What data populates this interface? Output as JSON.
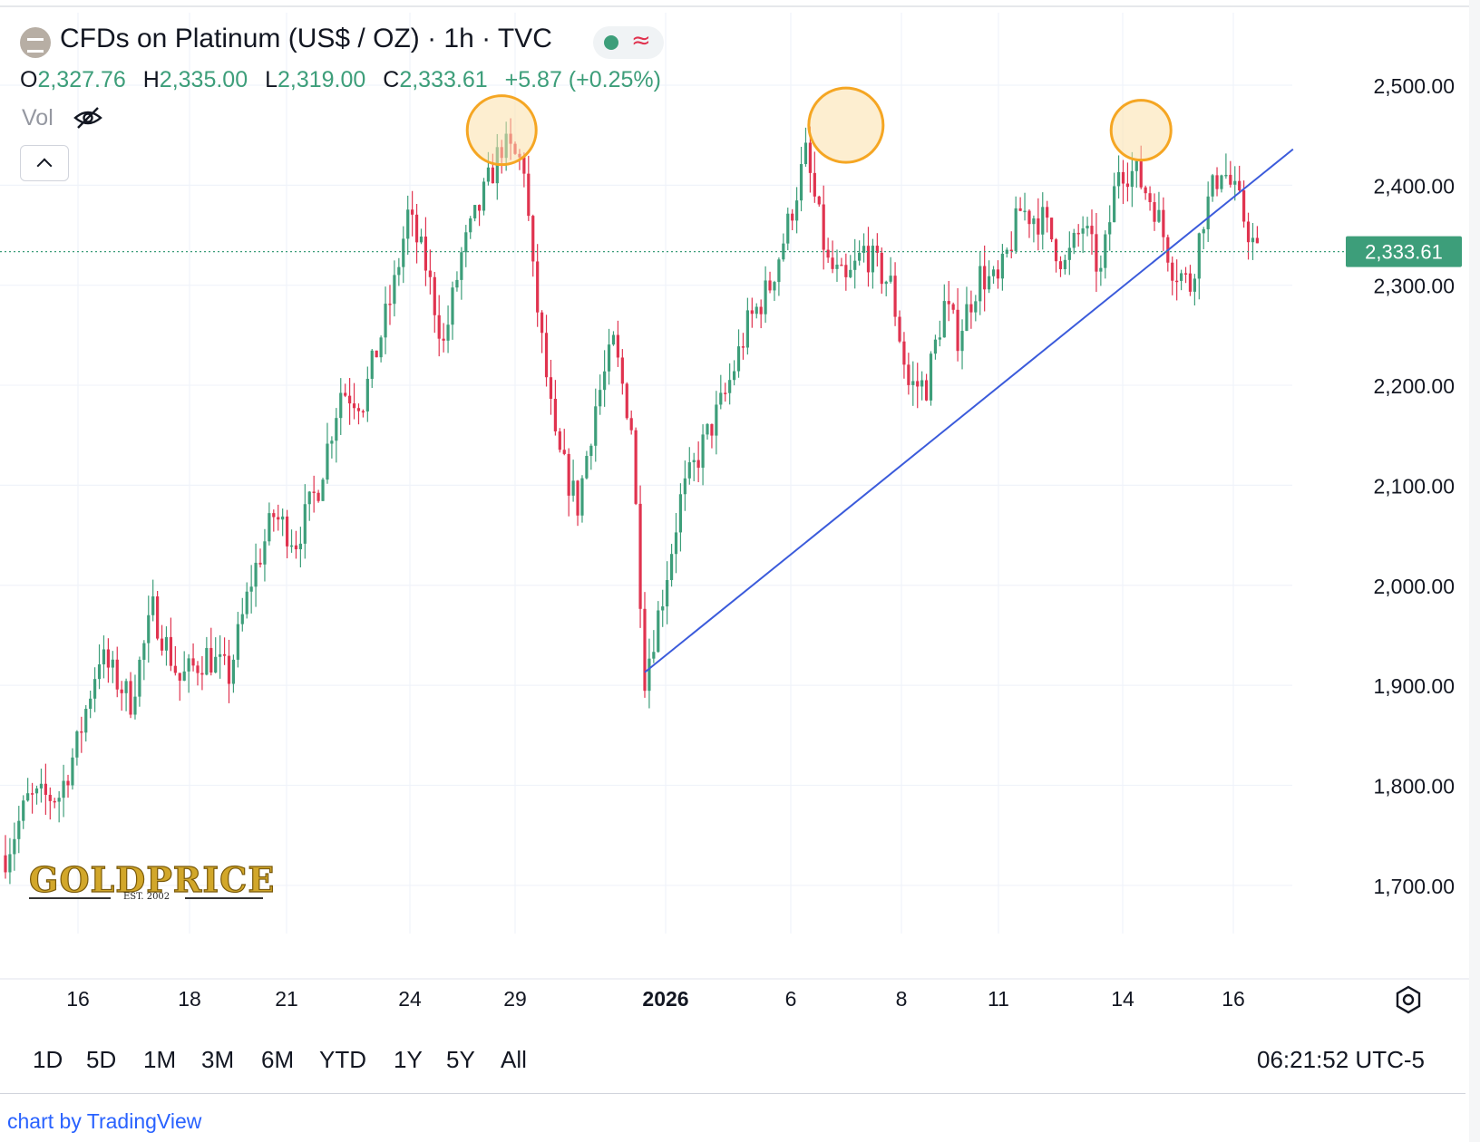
{
  "header": {
    "title": "CFDs on Platinum (US$ / OZ) · 1h · TVC",
    "ohlc": {
      "open_label": "O",
      "open": "2,327.76",
      "high_label": "H",
      "high": "2,335.00",
      "low_label": "L",
      "low": "2,319.00",
      "close_label": "C",
      "close": "2,333.61",
      "change": "+5.87 (+0.25%)"
    },
    "volume_label": "Vol"
  },
  "watermark": {
    "brand": "GOLDPRICE",
    "est": "EST. 2002"
  },
  "range_buttons": [
    "1D",
    "5D",
    "1M",
    "3M",
    "6M",
    "YTD",
    "1Y",
    "5Y",
    "All"
  ],
  "timestamp": "06:21:52 UTC-5",
  "credit": "chart by TradingView",
  "colors": {
    "up": "#3d9e7a",
    "down": "#e0334f",
    "trendline": "#3b5bdb",
    "highlight": "#f5a623",
    "price_tag": "#3d9e7a"
  },
  "chart_data": {
    "type": "candlestick",
    "interval": "1h",
    "ylim": [
      1650,
      2540
    ],
    "y_ticks": [
      "1,700.00",
      "1,800.00",
      "1,900.00",
      "2,000.00",
      "2,100.00",
      "2,200.00",
      "2,300.00",
      "2,400.00",
      "2,500.00"
    ],
    "x_ticks": [
      "16",
      "18",
      "21",
      "24",
      "29",
      "2026",
      "6",
      "8",
      "11",
      "14",
      "16"
    ],
    "last_price": 2333.61,
    "last_price_label": "2,333.61",
    "price_path": [
      [
        0,
        1730
      ],
      [
        5,
        1785
      ],
      [
        12,
        1790
      ],
      [
        16,
        1840
      ],
      [
        21,
        1930
      ],
      [
        28,
        1885
      ],
      [
        33,
        1975
      ],
      [
        39,
        1905
      ],
      [
        45,
        1930
      ],
      [
        50,
        1910
      ],
      [
        55,
        2005
      ],
      [
        60,
        2070
      ],
      [
        65,
        2045
      ],
      [
        70,
        2100
      ],
      [
        75,
        2195
      ],
      [
        80,
        2185
      ],
      [
        87,
        2300
      ],
      [
        90,
        2370
      ],
      [
        94,
        2320
      ],
      [
        98,
        2240
      ],
      [
        102,
        2330
      ],
      [
        107,
        2390
      ],
      [
        111,
        2440
      ],
      [
        116,
        2420
      ],
      [
        118,
        2310
      ],
      [
        123,
        2140
      ],
      [
        128,
        2080
      ],
      [
        132,
        2180
      ],
      [
        136,
        2240
      ],
      [
        140,
        2160
      ],
      [
        143,
        1910
      ],
      [
        147,
        1990
      ],
      [
        151,
        2085
      ],
      [
        156,
        2140
      ],
      [
        161,
        2190
      ],
      [
        166,
        2260
      ],
      [
        171,
        2300
      ],
      [
        175,
        2360
      ],
      [
        179,
        2430
      ],
      [
        184,
        2320
      ],
      [
        188,
        2300
      ],
      [
        192,
        2335
      ],
      [
        198,
        2300
      ],
      [
        202,
        2200
      ],
      [
        206,
        2200
      ],
      [
        210,
        2280
      ],
      [
        213,
        2250
      ],
      [
        218,
        2310
      ],
      [
        222,
        2300
      ],
      [
        227,
        2375
      ],
      [
        232,
        2365
      ],
      [
        237,
        2320
      ],
      [
        241,
        2360
      ],
      [
        245,
        2310
      ],
      [
        249,
        2420
      ],
      [
        253,
        2410
      ],
      [
        257,
        2380
      ],
      [
        261,
        2320
      ],
      [
        265,
        2300
      ],
      [
        268,
        2370
      ],
      [
        272,
        2420
      ],
      [
        276,
        2380
      ],
      [
        280,
        2330
      ]
    ],
    "trendline": {
      "from": [
        143,
        1913
      ],
      "to": [
        288,
        2436
      ]
    },
    "highlights": [
      {
        "x": 111,
        "y": 2455
      },
      {
        "x": 188,
        "y": 2460
      },
      {
        "x": 254,
        "y": 2455
      }
    ]
  }
}
